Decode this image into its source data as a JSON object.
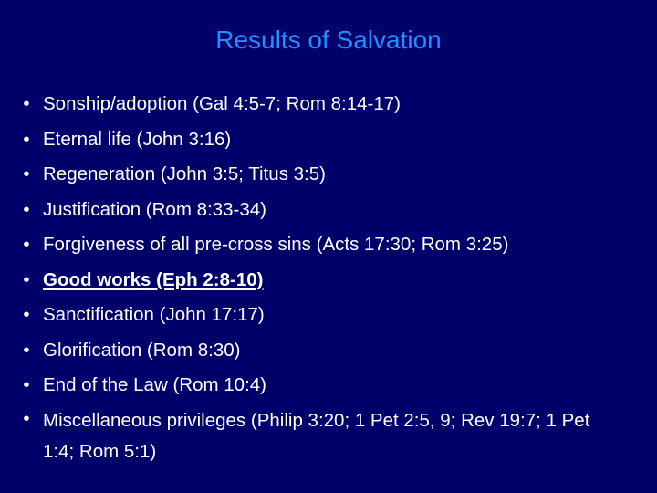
{
  "slide": {
    "title": "Results of Salvation",
    "title_color": "#1e90ff",
    "background_color": "#00006a",
    "text_color": "#ffffff",
    "bullet_glyph": "•",
    "items": [
      {
        "text": "Sonship/adoption (Gal 4:5-7; Rom 8:14-17)",
        "emphasis": false
      },
      {
        "text": "Eternal life (John 3:16)",
        "emphasis": false
      },
      {
        "text": "Regeneration (John 3:5; Titus 3:5)",
        "emphasis": false
      },
      {
        "text": "Justification (Rom 8:33-34)",
        "emphasis": false
      },
      {
        "text": "Forgiveness of all pre-cross sins (Acts 17:30; Rom 3:25)",
        "emphasis": false
      },
      {
        "text": "Good works (Eph 2:8-10)",
        "emphasis": true
      },
      {
        "text": "Sanctification (John 17:17)",
        "emphasis": false
      },
      {
        "text": "Glorification (Rom 8:30)",
        "emphasis": false
      },
      {
        "text": "End of the Law (Rom 10:4)",
        "emphasis": false
      },
      {
        "text": "Miscellaneous privileges (Philip 3:20; 1 Pet 2:5, 9; Rev 19:7; 1 Pet 1:4; Rom 5:1)",
        "emphasis": false
      }
    ]
  }
}
